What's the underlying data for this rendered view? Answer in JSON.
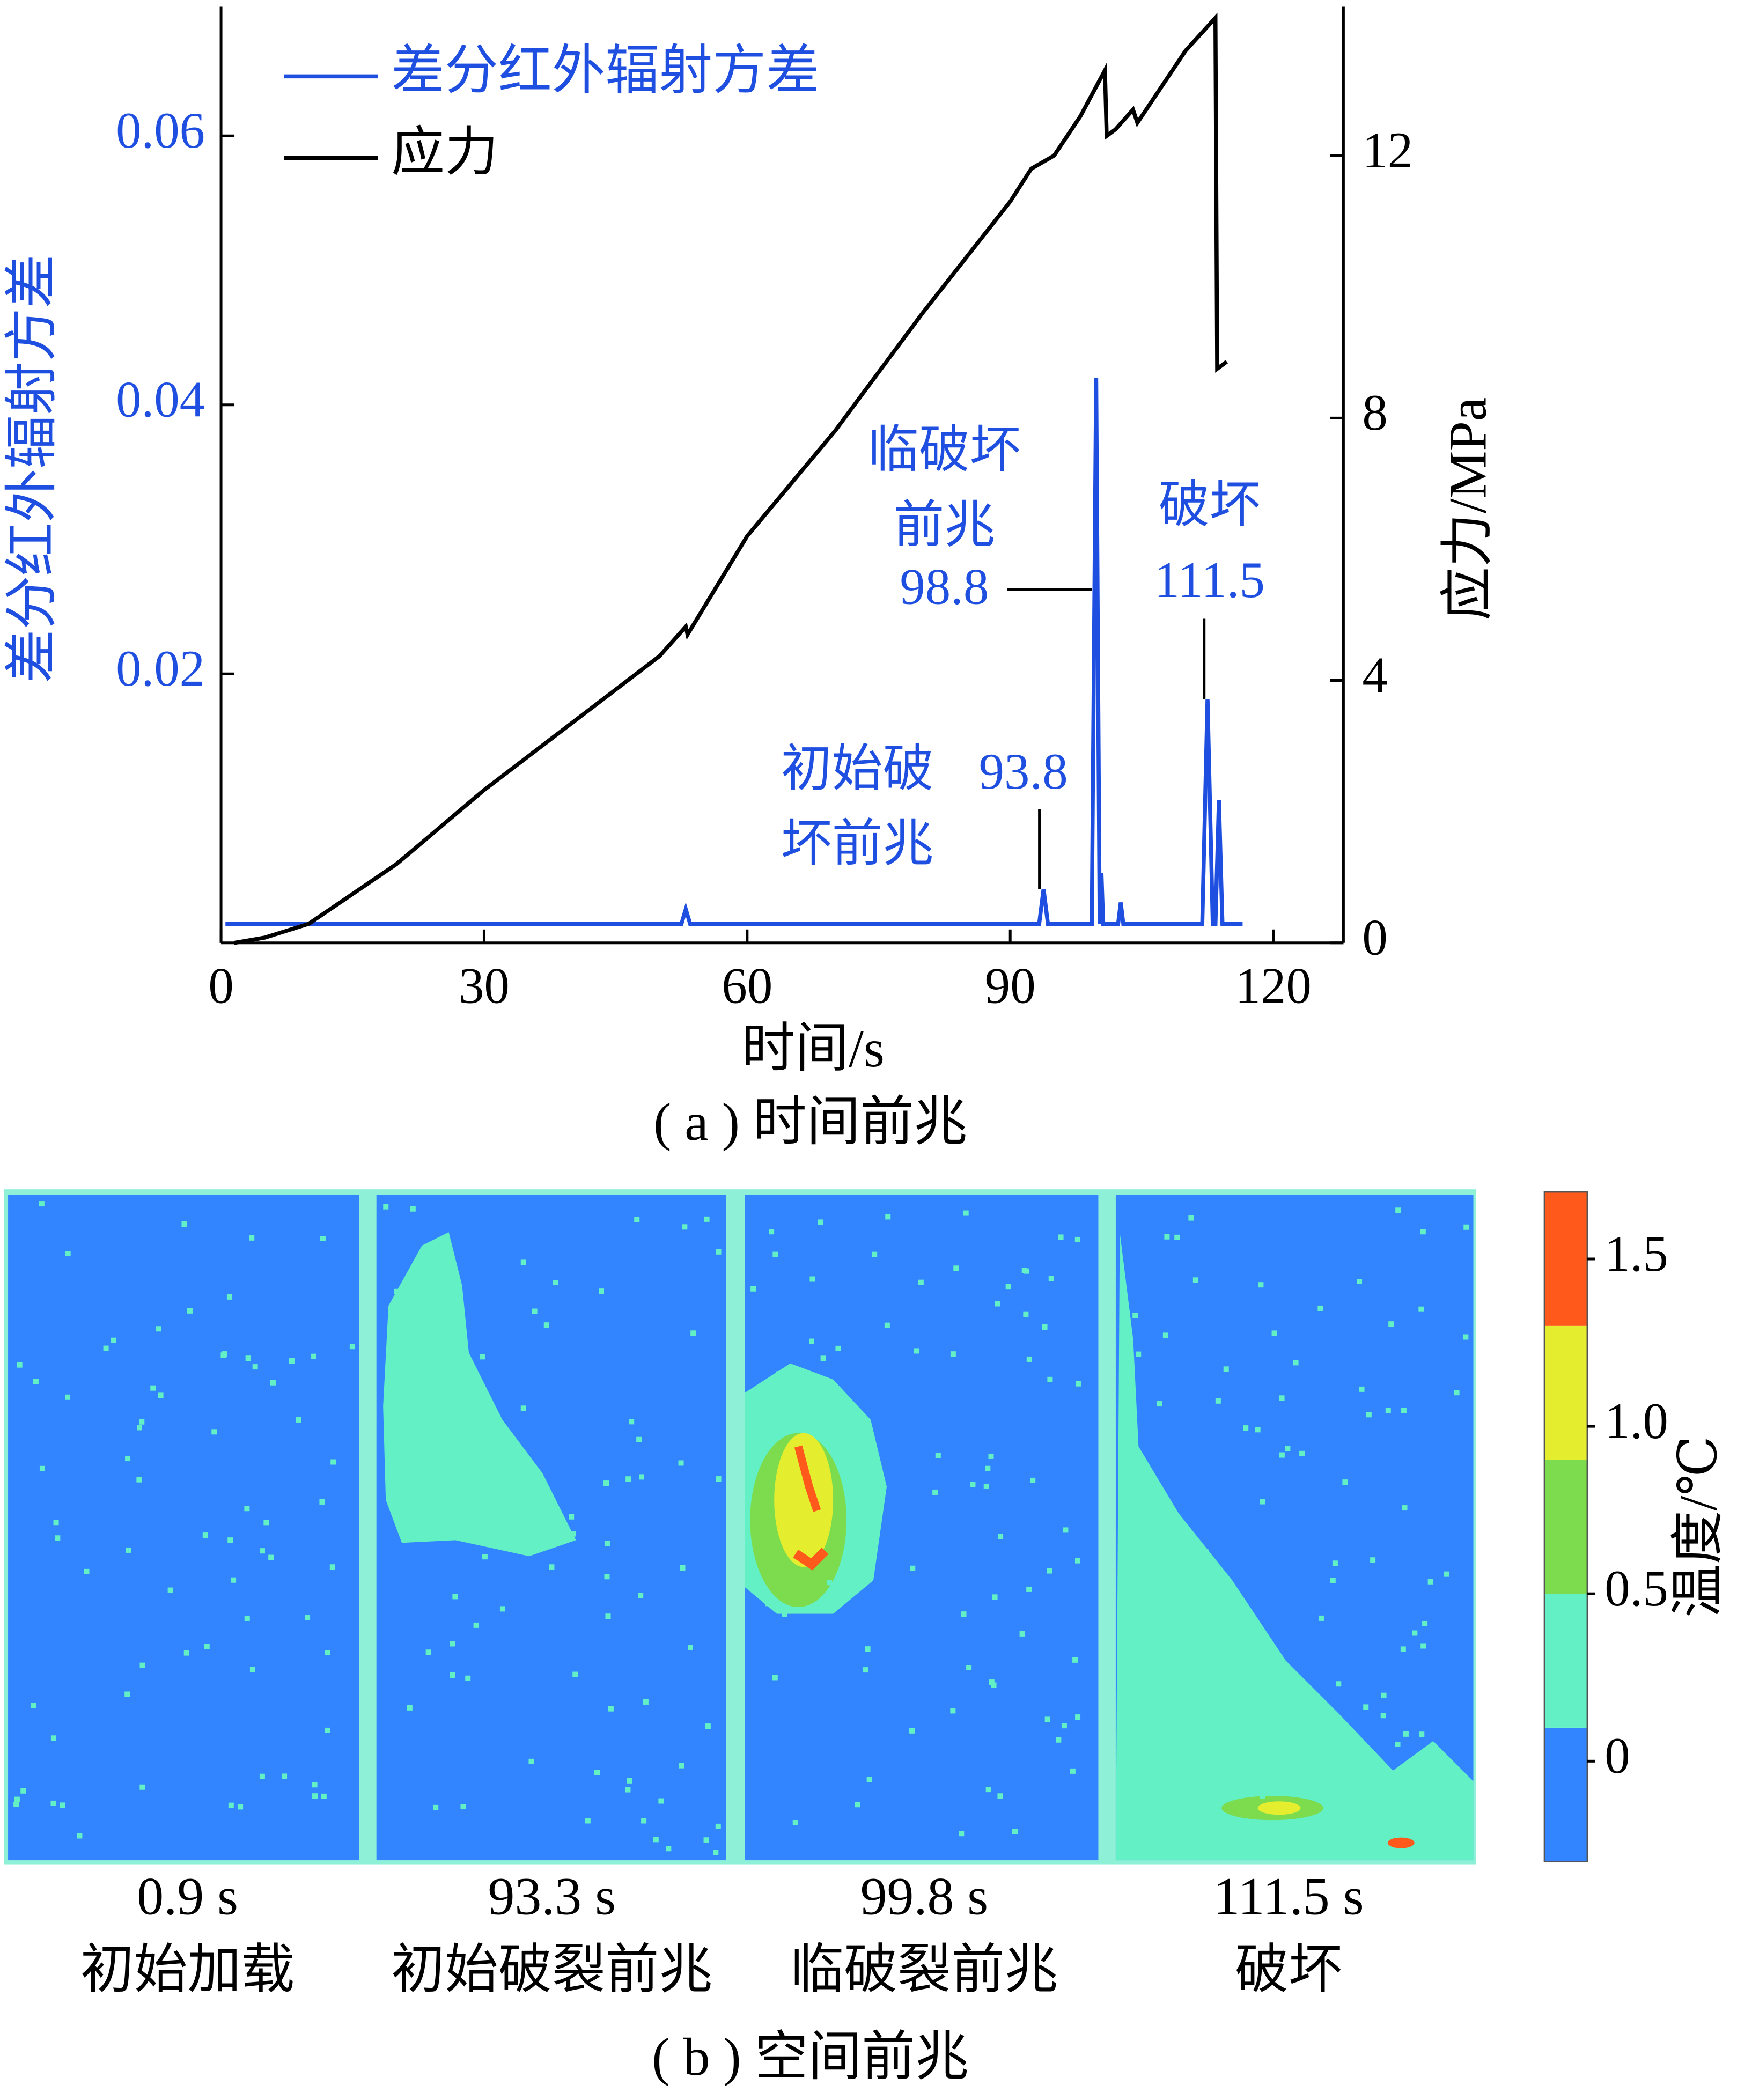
{
  "chart_data": [
    {
      "type": "line",
      "caption": "( a ) 时间前兆",
      "xlabel": "时间/s",
      "ylabel": "差分红外辐射方差",
      "y2label": "应力/MPa",
      "xlim": [
        0,
        128
      ],
      "xticks": [
        0,
        30,
        60,
        90,
        120
      ],
      "ylim": [
        0,
        0.0696
      ],
      "yticks": [
        0.02,
        0.04,
        0.06
      ],
      "y2lim": [
        0,
        14.27
      ],
      "y2ticks": [
        0,
        4,
        8,
        12
      ],
      "legend": "upper left",
      "series": [
        {
          "name": "差分红外辐射方差",
          "color": "#1f4fe0",
          "x": [
            0.5,
            52.5,
            53,
            53.5,
            93.3,
            93.8,
            94.3,
            99.3,
            99.8,
            100.2,
            100.4,
            100.6,
            100.9,
            102.3,
            102.6,
            102.9,
            111.9,
            112.5,
            113.1,
            113.4,
            113.8,
            114.2,
            116.5
          ],
          "values": [
            0.0014,
            0.0014,
            0.0025,
            0.0014,
            0.0014,
            0.004,
            0.0014,
            0.0014,
            0.042,
            0.0014,
            0.0052,
            0.0014,
            0.0014,
            0.0014,
            0.003,
            0.0014,
            0.0014,
            0.0181,
            0.0014,
            0.0014,
            0.0106,
            0.0014,
            0.0014
          ]
        },
        {
          "name": "应力",
          "color": "#000000",
          "axis": "y2",
          "x": [
            1.5,
            5,
            10,
            20,
            30,
            40,
            50,
            53,
            53.2,
            60,
            70,
            80,
            90,
            92.4,
            95,
            98,
            100.8,
            101,
            102,
            104,
            104.5,
            107,
            110,
            113.4,
            113.6,
            114.7
          ],
          "values": [
            0,
            0.08,
            0.29,
            1.2,
            2.33,
            3.35,
            4.37,
            4.82,
            4.7,
            6.2,
            7.8,
            9.6,
            11.3,
            11.8,
            12.0,
            12.6,
            13.3,
            12.3,
            12.4,
            12.7,
            12.5,
            13.0,
            13.6,
            14.1,
            8.75,
            8.86
          ]
        }
      ],
      "annotations": [
        "初始破",
        "坏前兆",
        "93.8",
        "临破坏",
        "前兆",
        "98.8",
        "破坏",
        "111.5"
      ]
    },
    {
      "type": "heatmap",
      "caption": "( b ) 空间前兆",
      "panels": [
        {
          "time": "0.9 s",
          "label": "初始加载"
        },
        {
          "time": "93.3 s",
          "label": "初始破裂前兆"
        },
        {
          "time": "99.8 s",
          "label": "临破裂前兆"
        },
        {
          "time": "111.5 s",
          "label": "破坏"
        }
      ],
      "colorbar": {
        "label": "温度/℃",
        "clim": [
          -0.3,
          1.7
        ],
        "colors": [
          "#3385ff",
          "#62f0c4",
          "#7ddc4e",
          "#e4ee2e",
          "#ff5a1c"
        ],
        "ticks": [
          0,
          0.5,
          {
            "value": 1,
            "label": "1.0"
          },
          1.5
        ]
      }
    }
  ]
}
